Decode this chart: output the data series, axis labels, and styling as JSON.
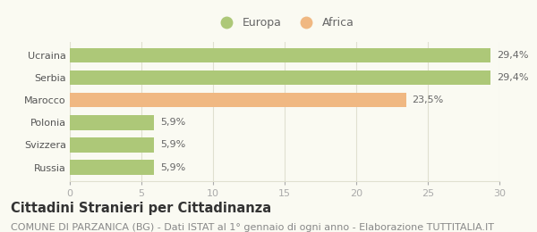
{
  "categories": [
    "Russia",
    "Svizzera",
    "Polonia",
    "Marocco",
    "Serbia",
    "Ucraina"
  ],
  "values": [
    5.9,
    5.9,
    5.9,
    23.5,
    29.4,
    29.4
  ],
  "labels": [
    "5,9%",
    "5,9%",
    "5,9%",
    "23,5%",
    "29,4%",
    "29,4%"
  ],
  "colors": [
    "#adc878",
    "#adc878",
    "#adc878",
    "#f0b882",
    "#adc878",
    "#adc878"
  ],
  "legend_items": [
    {
      "label": "Europa",
      "color": "#adc878"
    },
    {
      "label": "Africa",
      "color": "#f0b882"
    }
  ],
  "xlim": [
    0,
    30
  ],
  "xticks": [
    0,
    5,
    10,
    15,
    20,
    25,
    30
  ],
  "title": "Cittadini Stranieri per Cittadinanza",
  "subtitle": "COMUNE DI PARZANICA (BG) - Dati ISTAT al 1° gennaio di ogni anno - Elaborazione TUTTITALIA.IT",
  "title_fontsize": 10.5,
  "subtitle_fontsize": 8,
  "label_fontsize": 8,
  "tick_fontsize": 8,
  "legend_fontsize": 9,
  "bar_height": 0.65,
  "background_color": "#fafaf2",
  "plot_bg_color": "#ffffff",
  "grid_color": "#e0e0d0",
  "tick_color": "#aaaaaa",
  "ylabel_color": "#555555",
  "label_color": "#666666"
}
